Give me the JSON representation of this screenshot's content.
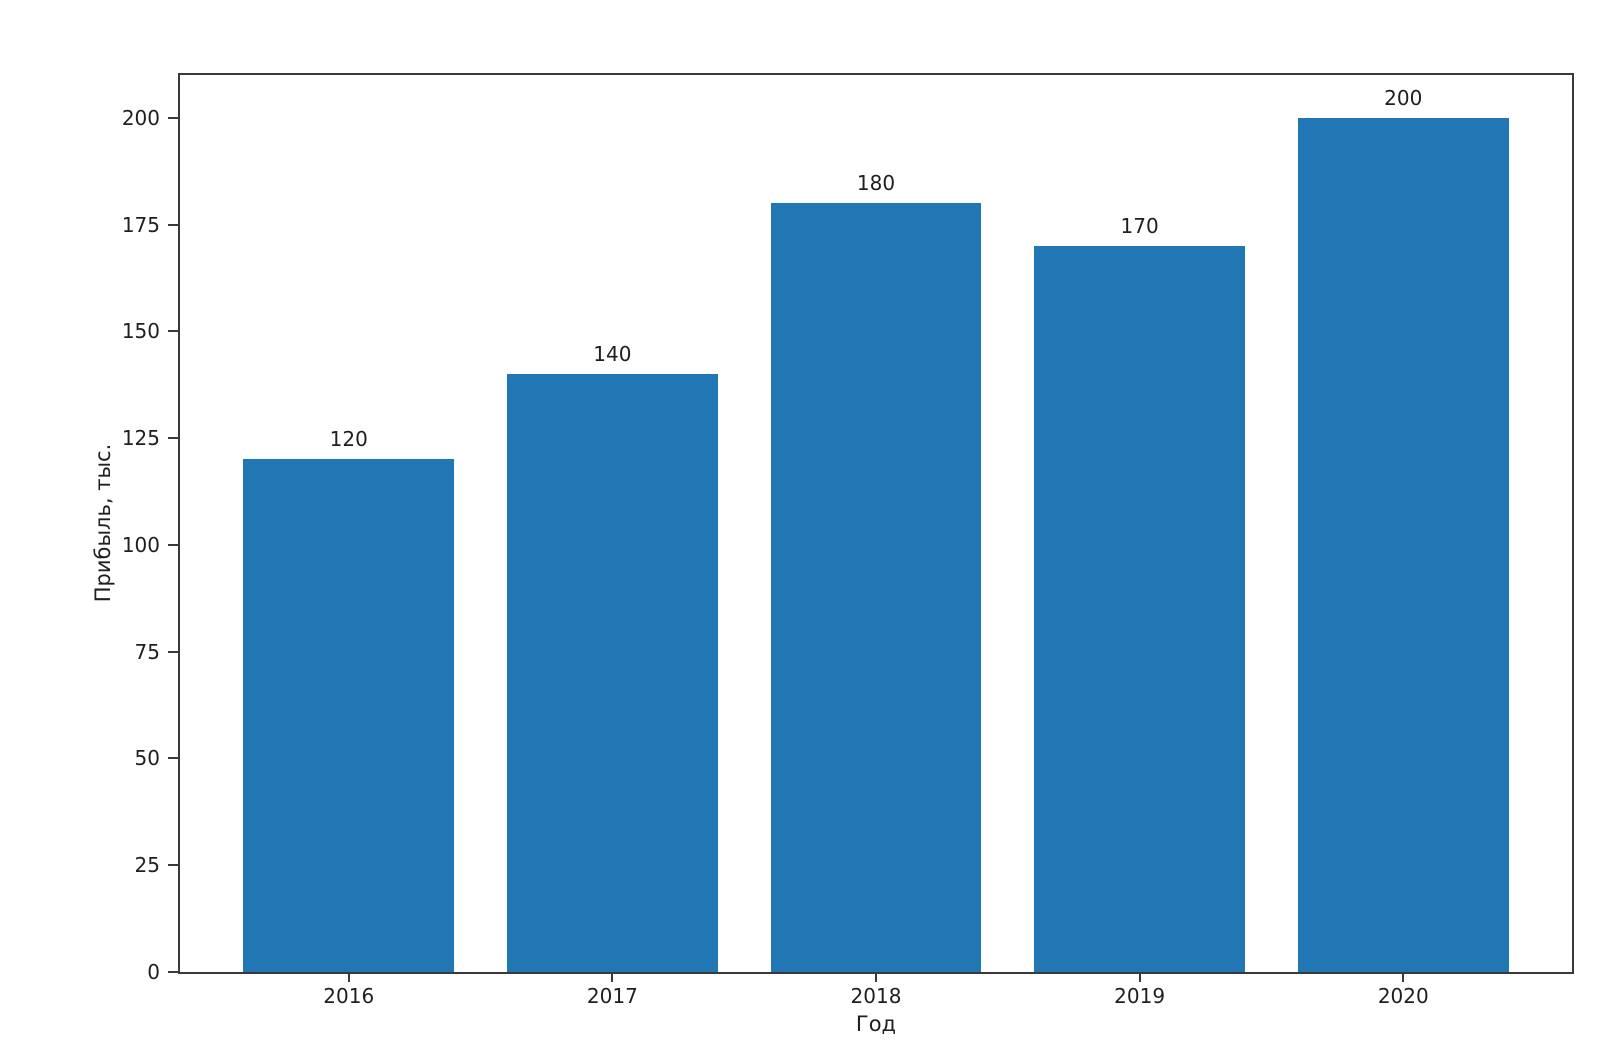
{
  "chart_data": {
    "type": "bar",
    "title": "",
    "categories": [
      "2016",
      "2017",
      "2018",
      "2019",
      "2020"
    ],
    "values": [
      120,
      140,
      180,
      170,
      200
    ],
    "bar_value_labels": [
      "120",
      "140",
      "180",
      "170",
      "200"
    ],
    "xlabel": "Год",
    "ylabel": "Прибыль, тыс.",
    "yticks": [
      0,
      25,
      50,
      75,
      100,
      125,
      150,
      175,
      200
    ],
    "ylim": [
      0,
      210
    ],
    "grid": false,
    "legend": null,
    "bar_color": "#2077b4",
    "spine_color": "#3a3a3a",
    "text_color": "#1f1f1f",
    "background_color": "#ffffff"
  }
}
